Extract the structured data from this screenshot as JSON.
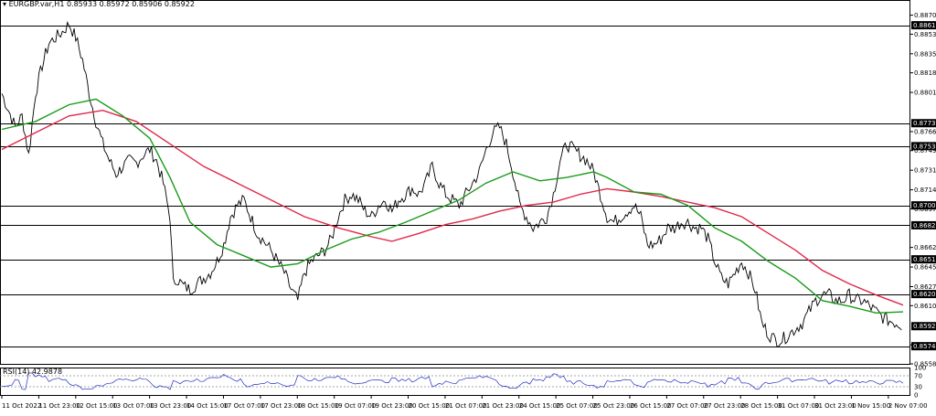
{
  "header": {
    "symbol_line": "EURGBP.var,H1  0.85933 0.85972 0.85906 0.85922"
  },
  "rsi": {
    "label": "RSI(14) 42.9878",
    "value": 42.9878,
    "ticks": [
      "100",
      "70",
      "30",
      "0"
    ]
  },
  "colors": {
    "candle": "#000000",
    "ma_fast": "#1a9a1a",
    "ma_slow": "#e0284a",
    "rsi_line": "#2030c0",
    "price_tag": "#000000"
  },
  "chart_data": {
    "type": "candlestick",
    "symbol": "EURGBP.var",
    "timeframe": "H1",
    "ylim": [
      0.85585,
      0.8877
    ],
    "price_axis_ticks": [
      "0.88700",
      "0.88530",
      "0.88355",
      "0.88185",
      "0.88010",
      "0.87660",
      "0.87490",
      "0.87315",
      "0.87140",
      "0.86970",
      "0.86625",
      "0.86450",
      "0.86275",
      "0.86105",
      "0.85755",
      "0.85585"
    ],
    "horizontal_levels": [
      "0.88610",
      "0.87735",
      "0.87530",
      "0.87001",
      "0.86823",
      "0.86519",
      "0.86209",
      "0.85922",
      "0.85743"
    ],
    "current_price": "0.85922",
    "x_ticks": [
      "11 Oct 2022",
      "11 Oct 23:00",
      "12 Oct 15:00",
      "13 Oct 07:00",
      "13 Oct 23:00",
      "14 Oct 15:00",
      "17 Oct 07:00",
      "17 Oct 23:00",
      "18 Oct 15:00",
      "19 Oct 07:00",
      "19 Oct 23:00",
      "20 Oct 15:00",
      "21 Oct 07:00",
      "21 Oct 23:00",
      "24 Oct 15:00",
      "25 Oct 07:00",
      "25 Oct 23:00",
      "26 Oct 15:00",
      "27 Oct 07:00",
      "27 Oct 23:00",
      "28 Oct 15:00",
      "31 Oct 07:00",
      "31 Oct 23:00",
      "1 Nov 15:00",
      "2 Nov 07:00"
    ],
    "price_path": [
      [
        0,
        0.88
      ],
      [
        1,
        0.8785
      ],
      [
        2,
        0.877
      ],
      [
        3,
        0.878
      ],
      [
        4,
        0.8745
      ],
      [
        5,
        0.88
      ],
      [
        6,
        0.8825
      ],
      [
        7,
        0.8845
      ],
      [
        8,
        0.885
      ],
      [
        9,
        0.8855
      ],
      [
        10,
        0.8862
      ],
      [
        11,
        0.885
      ],
      [
        12,
        0.883
      ],
      [
        13,
        0.88
      ],
      [
        14,
        0.8775
      ],
      [
        15,
        0.8755
      ],
      [
        16,
        0.874
      ],
      [
        17,
        0.8728
      ],
      [
        18,
        0.8735
      ],
      [
        19,
        0.874
      ],
      [
        20,
        0.8738
      ],
      [
        21,
        0.8745
      ],
      [
        22,
        0.875
      ],
      [
        23,
        0.874
      ],
      [
        24,
        0.872
      ],
      [
        25,
        0.869
      ],
      [
        25.5,
        0.863
      ],
      [
        26,
        0.8635
      ],
      [
        27,
        0.8628
      ],
      [
        28,
        0.8625
      ],
      [
        29,
        0.863
      ],
      [
        30,
        0.8635
      ],
      [
        31,
        0.864
      ],
      [
        32,
        0.865
      ],
      [
        33,
        0.8665
      ],
      [
        34,
        0.869
      ],
      [
        35,
        0.87
      ],
      [
        36,
        0.8705
      ],
      [
        37,
        0.869
      ],
      [
        38,
        0.8675
      ],
      [
        39,
        0.8668
      ],
      [
        40,
        0.866
      ],
      [
        41,
        0.865
      ],
      [
        42,
        0.864
      ],
      [
        43,
        0.8625
      ],
      [
        44,
        0.8615
      ],
      [
        45,
        0.864
      ],
      [
        46,
        0.865
      ],
      [
        47,
        0.8655
      ],
      [
        48,
        0.866
      ],
      [
        49,
        0.867
      ],
      [
        50,
        0.869
      ],
      [
        51,
        0.8705
      ],
      [
        52,
        0.871
      ],
      [
        53,
        0.8705
      ],
      [
        54,
        0.8695
      ],
      [
        55,
        0.869
      ],
      [
        56,
        0.87
      ],
      [
        57,
        0.8705
      ],
      [
        58,
        0.8695
      ],
      [
        59,
        0.8705
      ],
      [
        60,
        0.871
      ],
      [
        61,
        0.8715
      ],
      [
        62,
        0.871
      ],
      [
        63,
        0.872
      ],
      [
        64,
        0.8735
      ],
      [
        65,
        0.872
      ],
      [
        66,
        0.871
      ],
      [
        67,
        0.8705
      ],
      [
        68,
        0.87
      ],
      [
        69,
        0.871
      ],
      [
        70,
        0.872
      ],
      [
        71,
        0.873
      ],
      [
        72,
        0.875
      ],
      [
        73,
        0.8765
      ],
      [
        74,
        0.877
      ],
      [
        75,
        0.8755
      ],
      [
        76,
        0.873
      ],
      [
        77,
        0.87
      ],
      [
        78,
        0.869
      ],
      [
        79,
        0.868
      ],
      [
        80,
        0.8685
      ],
      [
        81,
        0.869
      ],
      [
        82,
        0.871
      ],
      [
        83,
        0.874
      ],
      [
        84,
        0.8755
      ],
      [
        85,
        0.875
      ],
      [
        86,
        0.8745
      ],
      [
        87,
        0.874
      ],
      [
        88,
        0.873
      ],
      [
        89,
        0.871
      ],
      [
        90,
        0.869
      ],
      [
        91,
        0.8685
      ],
      [
        92,
        0.869
      ],
      [
        93,
        0.8695
      ],
      [
        94,
        0.87
      ],
      [
        95,
        0.869
      ],
      [
        96,
        0.8665
      ],
      [
        97,
        0.8665
      ],
      [
        98,
        0.867
      ],
      [
        99,
        0.868
      ],
      [
        100,
        0.868
      ],
      [
        101,
        0.8685
      ],
      [
        102,
        0.8685
      ],
      [
        103,
        0.868
      ],
      [
        104,
        0.868
      ],
      [
        105,
        0.867
      ],
      [
        106,
        0.865
      ],
      [
        107,
        0.8635
      ],
      [
        108,
        0.863
      ],
      [
        109,
        0.864
      ],
      [
        110,
        0.865
      ],
      [
        111,
        0.864
      ],
      [
        112,
        0.8625
      ],
      [
        113,
        0.8595
      ],
      [
        114,
        0.8585
      ],
      [
        115,
        0.858
      ],
      [
        116,
        0.858
      ],
      [
        117,
        0.8585
      ],
      [
        118,
        0.859
      ],
      [
        119,
        0.8595
      ],
      [
        120,
        0.8605
      ],
      [
        121,
        0.8615
      ],
      [
        122,
        0.862
      ],
      [
        123,
        0.862
      ],
      [
        124,
        0.8615
      ],
      [
        125,
        0.8615
      ],
      [
        126,
        0.862
      ],
      [
        127,
        0.8615
      ],
      [
        128,
        0.8615
      ],
      [
        129,
        0.861
      ],
      [
        130,
        0.8605
      ],
      [
        131,
        0.86
      ],
      [
        132,
        0.8597
      ],
      [
        133,
        0.8595
      ],
      [
        134,
        0.8592
      ]
    ],
    "ma_fast_path": [
      [
        0,
        0.8768
      ],
      [
        5,
        0.8775
      ],
      [
        10,
        0.879
      ],
      [
        14,
        0.8795
      ],
      [
        18,
        0.878
      ],
      [
        22,
        0.876
      ],
      [
        25,
        0.8725
      ],
      [
        28,
        0.8685
      ],
      [
        32,
        0.8665
      ],
      [
        36,
        0.8655
      ],
      [
        40,
        0.8645
      ],
      [
        44,
        0.8648
      ],
      [
        48,
        0.866
      ],
      [
        52,
        0.867
      ],
      [
        56,
        0.8676
      ],
      [
        60,
        0.8685
      ],
      [
        64,
        0.8695
      ],
      [
        68,
        0.8705
      ],
      [
        72,
        0.872
      ],
      [
        76,
        0.873
      ],
      [
        80,
        0.8722
      ],
      [
        84,
        0.8725
      ],
      [
        88,
        0.873
      ],
      [
        90,
        0.8725
      ],
      [
        94,
        0.8712
      ],
      [
        98,
        0.871
      ],
      [
        102,
        0.87
      ],
      [
        106,
        0.868
      ],
      [
        110,
        0.8668
      ],
      [
        114,
        0.865
      ],
      [
        118,
        0.8635
      ],
      [
        122,
        0.8615
      ],
      [
        126,
        0.861
      ],
      [
        130,
        0.8604
      ],
      [
        134,
        0.8605
      ]
    ],
    "ma_slow_path": [
      [
        0,
        0.875
      ],
      [
        5,
        0.8765
      ],
      [
        10,
        0.878
      ],
      [
        15,
        0.8785
      ],
      [
        20,
        0.8775
      ],
      [
        25,
        0.8755
      ],
      [
        30,
        0.8735
      ],
      [
        35,
        0.872
      ],
      [
        40,
        0.8705
      ],
      [
        45,
        0.869
      ],
      [
        50,
        0.868
      ],
      [
        55,
        0.8672
      ],
      [
        58,
        0.8668
      ],
      [
        62,
        0.8675
      ],
      [
        66,
        0.8683
      ],
      [
        70,
        0.8688
      ],
      [
        74,
        0.8695
      ],
      [
        78,
        0.87
      ],
      [
        82,
        0.8703
      ],
      [
        86,
        0.871
      ],
      [
        90,
        0.8715
      ],
      [
        94,
        0.8712
      ],
      [
        98,
        0.8708
      ],
      [
        102,
        0.8703
      ],
      [
        106,
        0.8698
      ],
      [
        110,
        0.869
      ],
      [
        114,
        0.8675
      ],
      [
        118,
        0.866
      ],
      [
        122,
        0.8642
      ],
      [
        126,
        0.863
      ],
      [
        130,
        0.862
      ],
      [
        134,
        0.8611
      ]
    ]
  }
}
